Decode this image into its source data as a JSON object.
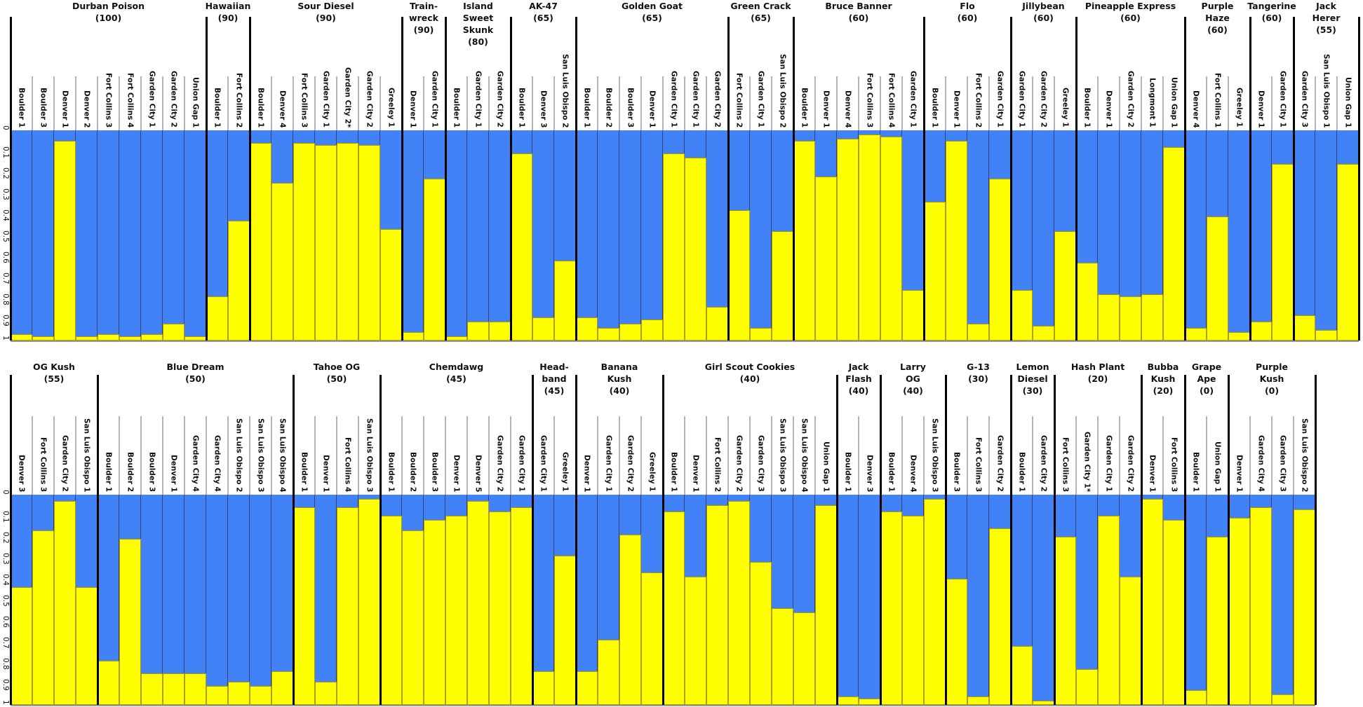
{
  "chart_data": {
    "type": "bar",
    "stacked": true,
    "ylim": [
      0,
      1
    ],
    "y_axis_inverted": true,
    "y_ticks": [
      "0",
      "0.1",
      "0.2",
      "0.3",
      "0.4",
      "0.5",
      "0.6",
      "0.7",
      "0.8",
      "0.9",
      "1"
    ],
    "grid": false,
    "colors": {
      "cluster_blue": "#4183f7",
      "cluster_yellow": "#ffff00"
    },
    "value_meaning": "blue fraction per sample (yellow = 1 - blue)",
    "panels": [
      {
        "groups": [
          {
            "name_lines": [
              "Durban Poison"
            ],
            "count_label": "(100)",
            "samples": [
              "Boulder 1",
              "Boulder 3",
              "Denver 1",
              "Denver 2",
              "Fort Collins 3",
              "Fort Collins 4",
              "Garden City 1",
              "Garden City 2",
              "Union Gap 1"
            ],
            "blue": [
              0.97,
              0.98,
              0.05,
              0.98,
              0.97,
              0.98,
              0.97,
              0.92,
              0.98
            ]
          },
          {
            "name_lines": [
              "Hawaiian"
            ],
            "count_label": "(90)",
            "samples": [
              "Boulder 1",
              "Fort Collins 2"
            ],
            "blue": [
              0.79,
              0.43
            ]
          },
          {
            "name_lines": [
              "Sour Diesel"
            ],
            "count_label": "(90)",
            "samples": [
              "Boulder 1",
              "Denver 4",
              "Fort Collins 3",
              "Garden City 1",
              "Garden City 2*",
              "Garden City 2",
              "Greeley 1"
            ],
            "blue": [
              0.06,
              0.25,
              0.06,
              0.07,
              0.06,
              0.07,
              0.47
            ]
          },
          {
            "name_lines": [
              "Train-",
              "wreck"
            ],
            "count_label": "(90)",
            "samples": [
              "Denver 1",
              "Garden City 1"
            ],
            "blue": [
              0.96,
              0.23
            ]
          },
          {
            "name_lines": [
              "Island",
              "Sweet",
              "Skunk"
            ],
            "count_label": "(80)",
            "samples": [
              "Boulder 1",
              "Garden City 1",
              "Garden City 2"
            ],
            "blue": [
              0.98,
              0.91,
              0.91
            ]
          },
          {
            "name_lines": [
              "AK-47"
            ],
            "count_label": "(65)",
            "samples": [
              "Boulder 1",
              "Denver 3",
              "San Luis Obispo 2"
            ],
            "blue": [
              0.11,
              0.89,
              0.62
            ]
          },
          {
            "name_lines": [
              "Golden Goat"
            ],
            "count_label": "(65)",
            "samples": [
              "Boulder 1",
              "Boulder 2",
              "Boulder 3",
              "Denver 1",
              "Garden City 1",
              "Garden City 1",
              "Garden City 2"
            ],
            "blue": [
              0.89,
              0.94,
              0.92,
              0.9,
              0.11,
              0.13,
              0.84
            ]
          },
          {
            "name_lines": [
              "Green Crack"
            ],
            "count_label": "(65)",
            "samples": [
              "Fort Collins 2",
              "Garden City 1",
              "San Luis Obispo 2"
            ],
            "blue": [
              0.38,
              0.94,
              0.48
            ]
          },
          {
            "name_lines": [
              "Bruce Banner"
            ],
            "count_label": "(60)",
            "samples": [
              "Boulder 1",
              "Denver 1",
              "Denver 4",
              "Fort Collins 3",
              "Fort Collins 4",
              "Garden City 1"
            ],
            "blue": [
              0.05,
              0.22,
              0.04,
              0.02,
              0.03,
              0.76
            ]
          },
          {
            "name_lines": [
              "Flo"
            ],
            "count_label": "(60)",
            "samples": [
              "Boulder 1",
              "Denver 1",
              "Fort Collins 2",
              "Garden City 1"
            ],
            "blue": [
              0.34,
              0.05,
              0.92,
              0.23
            ]
          },
          {
            "name_lines": [
              "Jillybean"
            ],
            "count_label": "(60)",
            "samples": [
              "Garden City 1",
              "Garden City 2",
              "Greeley 1"
            ],
            "blue": [
              0.76,
              0.93,
              0.48
            ]
          },
          {
            "name_lines": [
              "Pineapple Express"
            ],
            "count_label": "(60)",
            "samples": [
              "Boulder 1",
              "Denver 1",
              "Garden City 2",
              "Longmont 1",
              "Union Gap 1"
            ],
            "blue": [
              0.63,
              0.78,
              0.79,
              0.78,
              0.08
            ]
          },
          {
            "name_lines": [
              "Purple",
              "Haze"
            ],
            "count_label": "(60)",
            "samples": [
              "Denver 4",
              "Fort Collins 1",
              "Greeley 1"
            ],
            "blue": [
              0.94,
              0.41,
              0.96
            ]
          },
          {
            "name_lines": [
              "Tangerine"
            ],
            "count_label": "(60)",
            "samples": [
              "Denver 1",
              "Garden City 1"
            ],
            "blue": [
              0.91,
              0.16
            ]
          },
          {
            "name_lines": [
              "Jack",
              "Herer"
            ],
            "count_label": "(55)",
            "samples": [
              "Garden City 3",
              "San Luis Obispo 1",
              "Union Gap 1"
            ],
            "blue": [
              0.88,
              0.95,
              0.16
            ]
          }
        ]
      },
      {
        "groups": [
          {
            "name_lines": [
              "OG Kush"
            ],
            "count_label": "(55)",
            "samples": [
              "Denver 3",
              "Fort Collins 3",
              "Garden City 2",
              "San Luis Obispo 1"
            ],
            "blue": [
              0.44,
              0.17,
              0.03,
              0.44
            ]
          },
          {
            "name_lines": [
              "Blue Dream"
            ],
            "count_label": "(50)",
            "samples": [
              "Boulder 1",
              "Boulder 2",
              "Boulder 3",
              "Denver 1",
              "Garden City 4",
              "Garden City 4",
              "San Luis Obispo 2",
              "San Luis Obispo 3",
              "San Luis Obispo 4"
            ],
            "blue": [
              0.79,
              0.21,
              0.85,
              0.85,
              0.85,
              0.91,
              0.89,
              0.91,
              0.84
            ]
          },
          {
            "name_lines": [
              "Tahoe OG"
            ],
            "count_label": "(50)",
            "samples": [
              "Boulder 1",
              "Denver 1",
              "Fort Collins 4",
              "San Luis Obispo 3"
            ],
            "blue": [
              0.06,
              0.89,
              0.06,
              0.02
            ]
          },
          {
            "name_lines": [
              "Chemdawg"
            ],
            "count_label": "(45)",
            "samples": [
              "Boulder 1",
              "Boulder 2",
              "Boulder 3",
              "Denver 1",
              "Denver 5",
              "Garden City 2",
              "Garden City 1"
            ],
            "blue": [
              0.1,
              0.17,
              0.12,
              0.1,
              0.03,
              0.08,
              0.06
            ]
          },
          {
            "name_lines": [
              "Head-",
              "band"
            ],
            "count_label": "(45)",
            "samples": [
              "Garden City 1",
              "Greeley 1"
            ],
            "blue": [
              0.84,
              0.29
            ]
          },
          {
            "name_lines": [
              "Banana",
              "Kush"
            ],
            "count_label": "(40)",
            "samples": [
              "Denver 1",
              "Garden City 1",
              "Garden City 2",
              "Greeley 1"
            ],
            "blue": [
              0.84,
              0.69,
              0.19,
              0.37
            ]
          },
          {
            "name_lines": [
              "Girl Scout Cookies"
            ],
            "count_label": "(40)",
            "samples": [
              "Boulder 1",
              "Denver 1",
              "Fort Collins 2",
              "Garden City 2",
              "Garden City 3",
              "San Luis Obispo 3",
              "San Luis Obispo 4",
              "Union Gap 1"
            ],
            "blue": [
              0.08,
              0.39,
              0.05,
              0.03,
              0.32,
              0.54,
              0.56,
              0.05
            ]
          },
          {
            "name_lines": [
              "Jack",
              "Flash"
            ],
            "count_label": "(40)",
            "samples": [
              "Boulder 1",
              "Denver 3"
            ],
            "blue": [
              0.96,
              0.97
            ]
          },
          {
            "name_lines": [
              "Larry",
              "OG"
            ],
            "count_label": "(40)",
            "samples": [
              "Boulder 1",
              "Denver 4",
              "San Luis Obispo 3"
            ],
            "blue": [
              0.08,
              0.1,
              0.02
            ]
          },
          {
            "name_lines": [
              "G-13"
            ],
            "count_label": "(30)",
            "samples": [
              "Boulder 3",
              "Fort Collins 3",
              "Garden City 2"
            ],
            "blue": [
              0.4,
              0.96,
              0.16
            ]
          },
          {
            "name_lines": [
              "Lemon",
              "Diesel"
            ],
            "count_label": "(30)",
            "samples": [
              "Boulder 1",
              "Garden City 2"
            ],
            "blue": [
              0.72,
              0.98
            ]
          },
          {
            "name_lines": [
              "Hash Plant"
            ],
            "count_label": "(20)",
            "samples": [
              "Fort Collins 3",
              "Garden City 1*",
              "Garden City 1",
              "Garden City 2"
            ],
            "blue": [
              0.2,
              0.83,
              0.1,
              0.39
            ]
          },
          {
            "name_lines": [
              "Bubba",
              "Kush"
            ],
            "count_label": "(20)",
            "samples": [
              "Denver 1",
              "Fort Collins 3"
            ],
            "blue": [
              0.02,
              0.12
            ]
          },
          {
            "name_lines": [
              "Grape",
              "Ape"
            ],
            "count_label": "(0)",
            "samples": [
              "Boulder 1",
              "Union Gap 1"
            ],
            "blue": [
              0.93,
              0.2
            ]
          },
          {
            "name_lines": [
              "Purple",
              "Kush"
            ],
            "count_label": "(0)",
            "samples": [
              "Denver 1",
              "Garden City 4",
              "Garden City 3",
              "San Luis Obispo 2"
            ],
            "blue": [
              0.11,
              0.06,
              0.95,
              0.07
            ]
          }
        ]
      }
    ]
  }
}
